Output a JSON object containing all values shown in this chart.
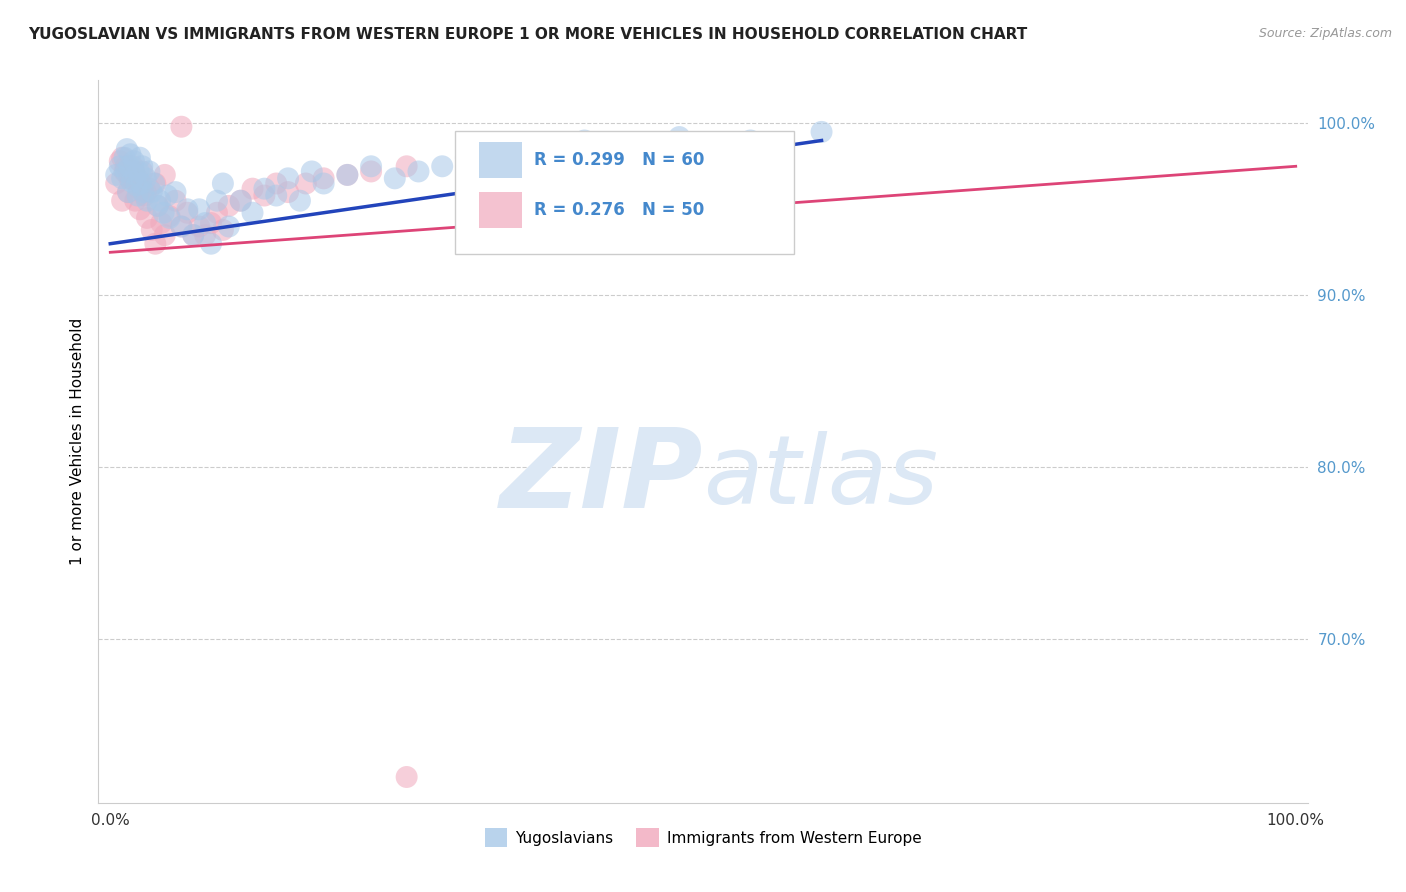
{
  "title": "YUGOSLAVIAN VS IMMIGRANTS FROM WESTERN EUROPE 1 OR MORE VEHICLES IN HOUSEHOLD CORRELATION CHART",
  "source": "Source: ZipAtlas.com",
  "ylabel": "1 or more Vehicles in Household",
  "R_blue": 0.299,
  "N_blue": 60,
  "R_pink": 0.276,
  "N_pink": 50,
  "blue_color": "#a8c8e8",
  "pink_color": "#f0a8bc",
  "blue_line_color": "#2244bb",
  "pink_line_color": "#dd4477",
  "background_color": "#ffffff",
  "watermark_color": "#dce8f5",
  "legend_border_color": "#cccccc",
  "grid_color": "#cccccc",
  "ytick_color": "#5599cc",
  "xtick_color": "#333333",
  "title_color": "#222222",
  "source_color": "#999999",
  "legend_text_color": "#4488cc",
  "blue_x": [
    0.005,
    0.008,
    0.01,
    0.012,
    0.013,
    0.014,
    0.015,
    0.016,
    0.017,
    0.018,
    0.02,
    0.021,
    0.022,
    0.023,
    0.024,
    0.025,
    0.026,
    0.027,
    0.028,
    0.03,
    0.031,
    0.033,
    0.035,
    0.037,
    0.04,
    0.042,
    0.045,
    0.048,
    0.05,
    0.055,
    0.06,
    0.065,
    0.07,
    0.075,
    0.08,
    0.085,
    0.09,
    0.095,
    0.1,
    0.11,
    0.12,
    0.13,
    0.14,
    0.15,
    0.16,
    0.17,
    0.18,
    0.2,
    0.22,
    0.24,
    0.26,
    0.28,
    0.3,
    0.33,
    0.36,
    0.4,
    0.44,
    0.48,
    0.54,
    0.6
  ],
  "blue_y": [
    0.97,
    0.975,
    0.968,
    0.98,
    0.972,
    0.985,
    0.96,
    0.975,
    0.982,
    0.966,
    0.978,
    0.97,
    0.964,
    0.958,
    0.972,
    0.98,
    0.965,
    0.975,
    0.96,
    0.968,
    0.955,
    0.972,
    0.96,
    0.965,
    0.952,
    0.955,
    0.948,
    0.958,
    0.945,
    0.96,
    0.94,
    0.95,
    0.935,
    0.95,
    0.942,
    0.93,
    0.955,
    0.965,
    0.94,
    0.955,
    0.948,
    0.962,
    0.958,
    0.968,
    0.955,
    0.972,
    0.965,
    0.97,
    0.975,
    0.968,
    0.972,
    0.975,
    0.98,
    0.97,
    0.985,
    0.99,
    0.985,
    0.992,
    0.99,
    0.995
  ],
  "pink_x": [
    0.005,
    0.008,
    0.01,
    0.012,
    0.015,
    0.017,
    0.019,
    0.021,
    0.023,
    0.025,
    0.027,
    0.029,
    0.031,
    0.033,
    0.035,
    0.038,
    0.04,
    0.043,
    0.046,
    0.05,
    0.055,
    0.06,
    0.065,
    0.07,
    0.075,
    0.08,
    0.085,
    0.09,
    0.095,
    0.1,
    0.11,
    0.12,
    0.13,
    0.14,
    0.15,
    0.165,
    0.18,
    0.2,
    0.22,
    0.25,
    0.01,
    0.013,
    0.016,
    0.02,
    0.024,
    0.03,
    0.038,
    0.046,
    0.06,
    0.25
  ],
  "pink_y": [
    0.965,
    0.978,
    0.955,
    0.972,
    0.96,
    0.968,
    0.975,
    0.955,
    0.968,
    0.95,
    0.972,
    0.958,
    0.945,
    0.962,
    0.938,
    0.93,
    0.952,
    0.942,
    0.935,
    0.946,
    0.955,
    0.94,
    0.948,
    0.935,
    0.94,
    0.935,
    0.942,
    0.948,
    0.938,
    0.952,
    0.955,
    0.962,
    0.958,
    0.965,
    0.96,
    0.965,
    0.968,
    0.97,
    0.972,
    0.975,
    0.98,
    0.975,
    0.968,
    0.972,
    0.962,
    0.96,
    0.965,
    0.97,
    0.998,
    0.62
  ],
  "blue_line_x": [
    0.0,
    0.6
  ],
  "blue_line_y": [
    0.93,
    0.99
  ],
  "pink_line_x": [
    0.0,
    1.0
  ],
  "pink_line_y": [
    0.925,
    0.975
  ],
  "xlim": [
    -0.01,
    1.01
  ],
  "ylim": [
    0.605,
    1.025
  ],
  "yticks": [
    0.7,
    0.8,
    0.9,
    1.0
  ],
  "ytick_labels": [
    "70.0%",
    "80.0%",
    "90.0%",
    "100.0%"
  ]
}
